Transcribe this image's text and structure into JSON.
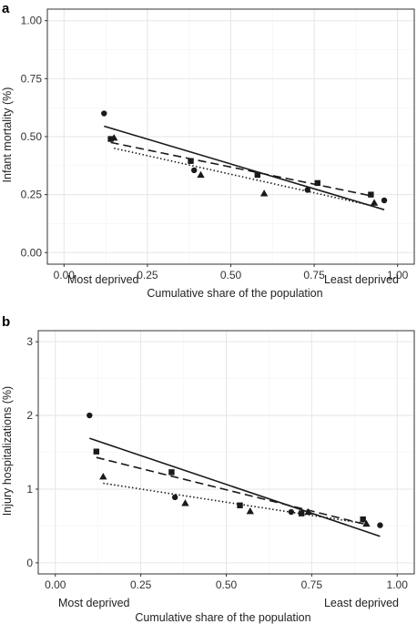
{
  "colors": {
    "ink": "#1a1a1a",
    "grid": "#e6e6e6",
    "frame": "#333333"
  },
  "chart_data": [
    {
      "type": "scatter",
      "panel_label": "a",
      "ylabel": "Infant mortality (%)",
      "xlabel": "Cumulative share of the population",
      "xlim": [
        -0.05,
        1.05
      ],
      "ylim": [
        -0.05,
        1.05
      ],
      "xticks": [
        0,
        0.25,
        0.5,
        0.75,
        1
      ],
      "xtick_labels": [
        "0.00",
        "0.25",
        "0.50",
        "0.75",
        "1.00"
      ],
      "yticks": [
        0,
        0.25,
        0.5,
        0.75,
        1
      ],
      "ytick_labels": [
        "0.00",
        "0.25",
        "0.50",
        "0.75",
        "1.00"
      ],
      "x_annotations": {
        "left": "Most deprived",
        "right": "Least deprived"
      },
      "grid": true,
      "series": [
        {
          "marker": "circle",
          "line": "solid",
          "points": [
            [
              0.12,
              0.6
            ],
            [
              0.39,
              0.355
            ],
            [
              0.73,
              0.27
            ],
            [
              0.96,
              0.225
            ]
          ],
          "fit": [
            [
              0.12,
              0.545
            ],
            [
              0.96,
              0.185
            ]
          ]
        },
        {
          "marker": "square",
          "line": "dashed",
          "points": [
            [
              0.14,
              0.49
            ],
            [
              0.38,
              0.395
            ],
            [
              0.58,
              0.335
            ],
            [
              0.76,
              0.3
            ],
            [
              0.92,
              0.25
            ]
          ],
          "fit": [
            [
              0.14,
              0.475
            ],
            [
              0.92,
              0.245
            ]
          ]
        },
        {
          "marker": "triangle",
          "line": "dotted",
          "points": [
            [
              0.15,
              0.495
            ],
            [
              0.41,
              0.335
            ],
            [
              0.6,
              0.255
            ],
            [
              0.93,
              0.215
            ]
          ],
          "fit": [
            [
              0.15,
              0.45
            ],
            [
              0.93,
              0.2
            ]
          ]
        }
      ]
    },
    {
      "type": "scatter",
      "panel_label": "b",
      "ylabel": "Injury hospitalizations (%)",
      "xlabel": "Cumulative share of the population",
      "xlim": [
        -0.05,
        1.05
      ],
      "ylim": [
        -0.15,
        3.15
      ],
      "xticks": [
        0,
        0.25,
        0.5,
        0.75,
        1
      ],
      "xtick_labels": [
        "0.00",
        "0.25",
        "0.50",
        "0.75",
        "1.00"
      ],
      "yticks": [
        0,
        1,
        2,
        3
      ],
      "ytick_labels": [
        "0",
        "1",
        "2",
        "3"
      ],
      "x_annotations": {
        "left": "Most deprived",
        "right": "Least deprived"
      },
      "grid": true,
      "series": [
        {
          "marker": "circle",
          "line": "solid",
          "points": [
            [
              0.1,
              2.0
            ],
            [
              0.35,
              0.89
            ],
            [
              0.69,
              0.69
            ],
            [
              0.95,
              0.51
            ]
          ],
          "fit": [
            [
              0.1,
              1.69
            ],
            [
              0.95,
              0.36
            ]
          ]
        },
        {
          "marker": "square",
          "line": "dashed",
          "points": [
            [
              0.12,
              1.51
            ],
            [
              0.34,
              1.23
            ],
            [
              0.54,
              0.78
            ],
            [
              0.72,
              0.67
            ],
            [
              0.9,
              0.59
            ]
          ],
          "fit": [
            [
              0.12,
              1.43
            ],
            [
              0.9,
              0.53
            ]
          ]
        },
        {
          "marker": "triangle",
          "line": "dotted",
          "points": [
            [
              0.14,
              1.17
            ],
            [
              0.38,
              0.81
            ],
            [
              0.57,
              0.7
            ],
            [
              0.74,
              0.69
            ],
            [
              0.91,
              0.53
            ]
          ],
          "fit": [
            [
              0.14,
              1.08
            ],
            [
              0.91,
              0.53
            ]
          ]
        }
      ]
    }
  ]
}
